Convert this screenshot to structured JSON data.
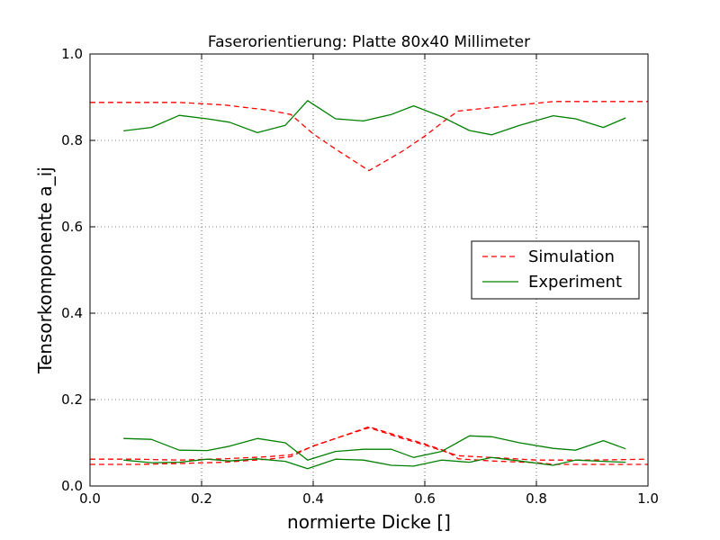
{
  "chart_data": {
    "type": "line",
    "title": "Faserorientierung: Platte 80x40 Millimeter",
    "xlabel": "normierte Dicke []",
    "ylabel": "Tensorkomponente a_ij",
    "xlim": [
      0.0,
      1.0
    ],
    "ylim": [
      0.0,
      1.0
    ],
    "xticks": [
      "0.0",
      "0.2",
      "0.4",
      "0.6",
      "0.8",
      "1.0"
    ],
    "yticks": [
      "0.0",
      "0.2",
      "0.4",
      "0.6",
      "0.8",
      "1.0"
    ],
    "grid": true,
    "legend_position": "center-right",
    "legend": [
      {
        "label": "Simulation",
        "color": "#ff0000",
        "style": "dashed"
      },
      {
        "label": "Experiment",
        "color": "#008000",
        "style": "solid"
      }
    ],
    "series": [
      {
        "group": "Simulation",
        "color": "#ff0000",
        "style": "dashed",
        "x": [
          0.0,
          0.08,
          0.16,
          0.24,
          0.32,
          0.36,
          0.4,
          0.44,
          0.5,
          0.56,
          0.6,
          0.64,
          0.66,
          0.72,
          0.8,
          0.83,
          0.9,
          1.0
        ],
        "y": [
          0.888,
          0.888,
          0.888,
          0.882,
          0.87,
          0.86,
          0.815,
          0.78,
          0.73,
          0.775,
          0.81,
          0.85,
          0.868,
          0.876,
          0.886,
          0.89,
          0.89,
          0.89
        ]
      },
      {
        "group": "Simulation",
        "color": "#ff0000",
        "style": "dashed",
        "x": [
          0.0,
          0.08,
          0.16,
          0.24,
          0.32,
          0.36,
          0.4,
          0.44,
          0.5,
          0.56,
          0.6,
          0.64,
          0.66,
          0.72,
          0.8,
          0.83,
          0.9,
          1.0
        ],
        "y": [
          0.062,
          0.062,
          0.06,
          0.063,
          0.068,
          0.072,
          0.092,
          0.11,
          0.135,
          0.11,
          0.095,
          0.078,
          0.07,
          0.066,
          0.06,
          0.06,
          0.06,
          0.062
        ]
      },
      {
        "group": "Simulation",
        "color": "#ff0000",
        "style": "dashed",
        "x": [
          0.0,
          0.08,
          0.16,
          0.24,
          0.32,
          0.36,
          0.4,
          0.44,
          0.5,
          0.56,
          0.6,
          0.64,
          0.66,
          0.72,
          0.8,
          0.83,
          0.9,
          1.0
        ],
        "y": [
          0.05,
          0.05,
          0.052,
          0.055,
          0.062,
          0.068,
          0.093,
          0.11,
          0.137,
          0.113,
          0.097,
          0.08,
          0.063,
          0.058,
          0.054,
          0.05,
          0.05,
          0.05
        ]
      },
      {
        "group": "Experiment",
        "color": "#008000",
        "style": "solid",
        "x": [
          0.06,
          0.11,
          0.16,
          0.21,
          0.25,
          0.3,
          0.35,
          0.39,
          0.44,
          0.49,
          0.54,
          0.58,
          0.63,
          0.68,
          0.72,
          0.77,
          0.83,
          0.87,
          0.92,
          0.96
        ],
        "y": [
          0.822,
          0.83,
          0.858,
          0.85,
          0.842,
          0.818,
          0.835,
          0.892,
          0.85,
          0.845,
          0.86,
          0.88,
          0.855,
          0.823,
          0.813,
          0.835,
          0.857,
          0.85,
          0.83,
          0.852
        ]
      },
      {
        "group": "Experiment",
        "color": "#008000",
        "style": "solid",
        "x": [
          0.06,
          0.11,
          0.16,
          0.21,
          0.25,
          0.3,
          0.35,
          0.39,
          0.44,
          0.49,
          0.54,
          0.58,
          0.63,
          0.68,
          0.72,
          0.77,
          0.83,
          0.87,
          0.92,
          0.96
        ],
        "y": [
          0.11,
          0.108,
          0.083,
          0.082,
          0.092,
          0.11,
          0.1,
          0.06,
          0.08,
          0.085,
          0.085,
          0.066,
          0.08,
          0.116,
          0.114,
          0.1,
          0.087,
          0.083,
          0.105,
          0.086
        ]
      },
      {
        "group": "Experiment",
        "color": "#008000",
        "style": "solid",
        "x": [
          0.06,
          0.11,
          0.16,
          0.21,
          0.25,
          0.3,
          0.35,
          0.39,
          0.44,
          0.49,
          0.54,
          0.58,
          0.63,
          0.68,
          0.72,
          0.77,
          0.83,
          0.87,
          0.92,
          0.96
        ],
        "y": [
          0.06,
          0.054,
          0.055,
          0.062,
          0.058,
          0.063,
          0.057,
          0.04,
          0.062,
          0.06,
          0.048,
          0.046,
          0.06,
          0.055,
          0.066,
          0.058,
          0.048,
          0.06,
          0.057,
          0.055
        ]
      }
    ]
  }
}
